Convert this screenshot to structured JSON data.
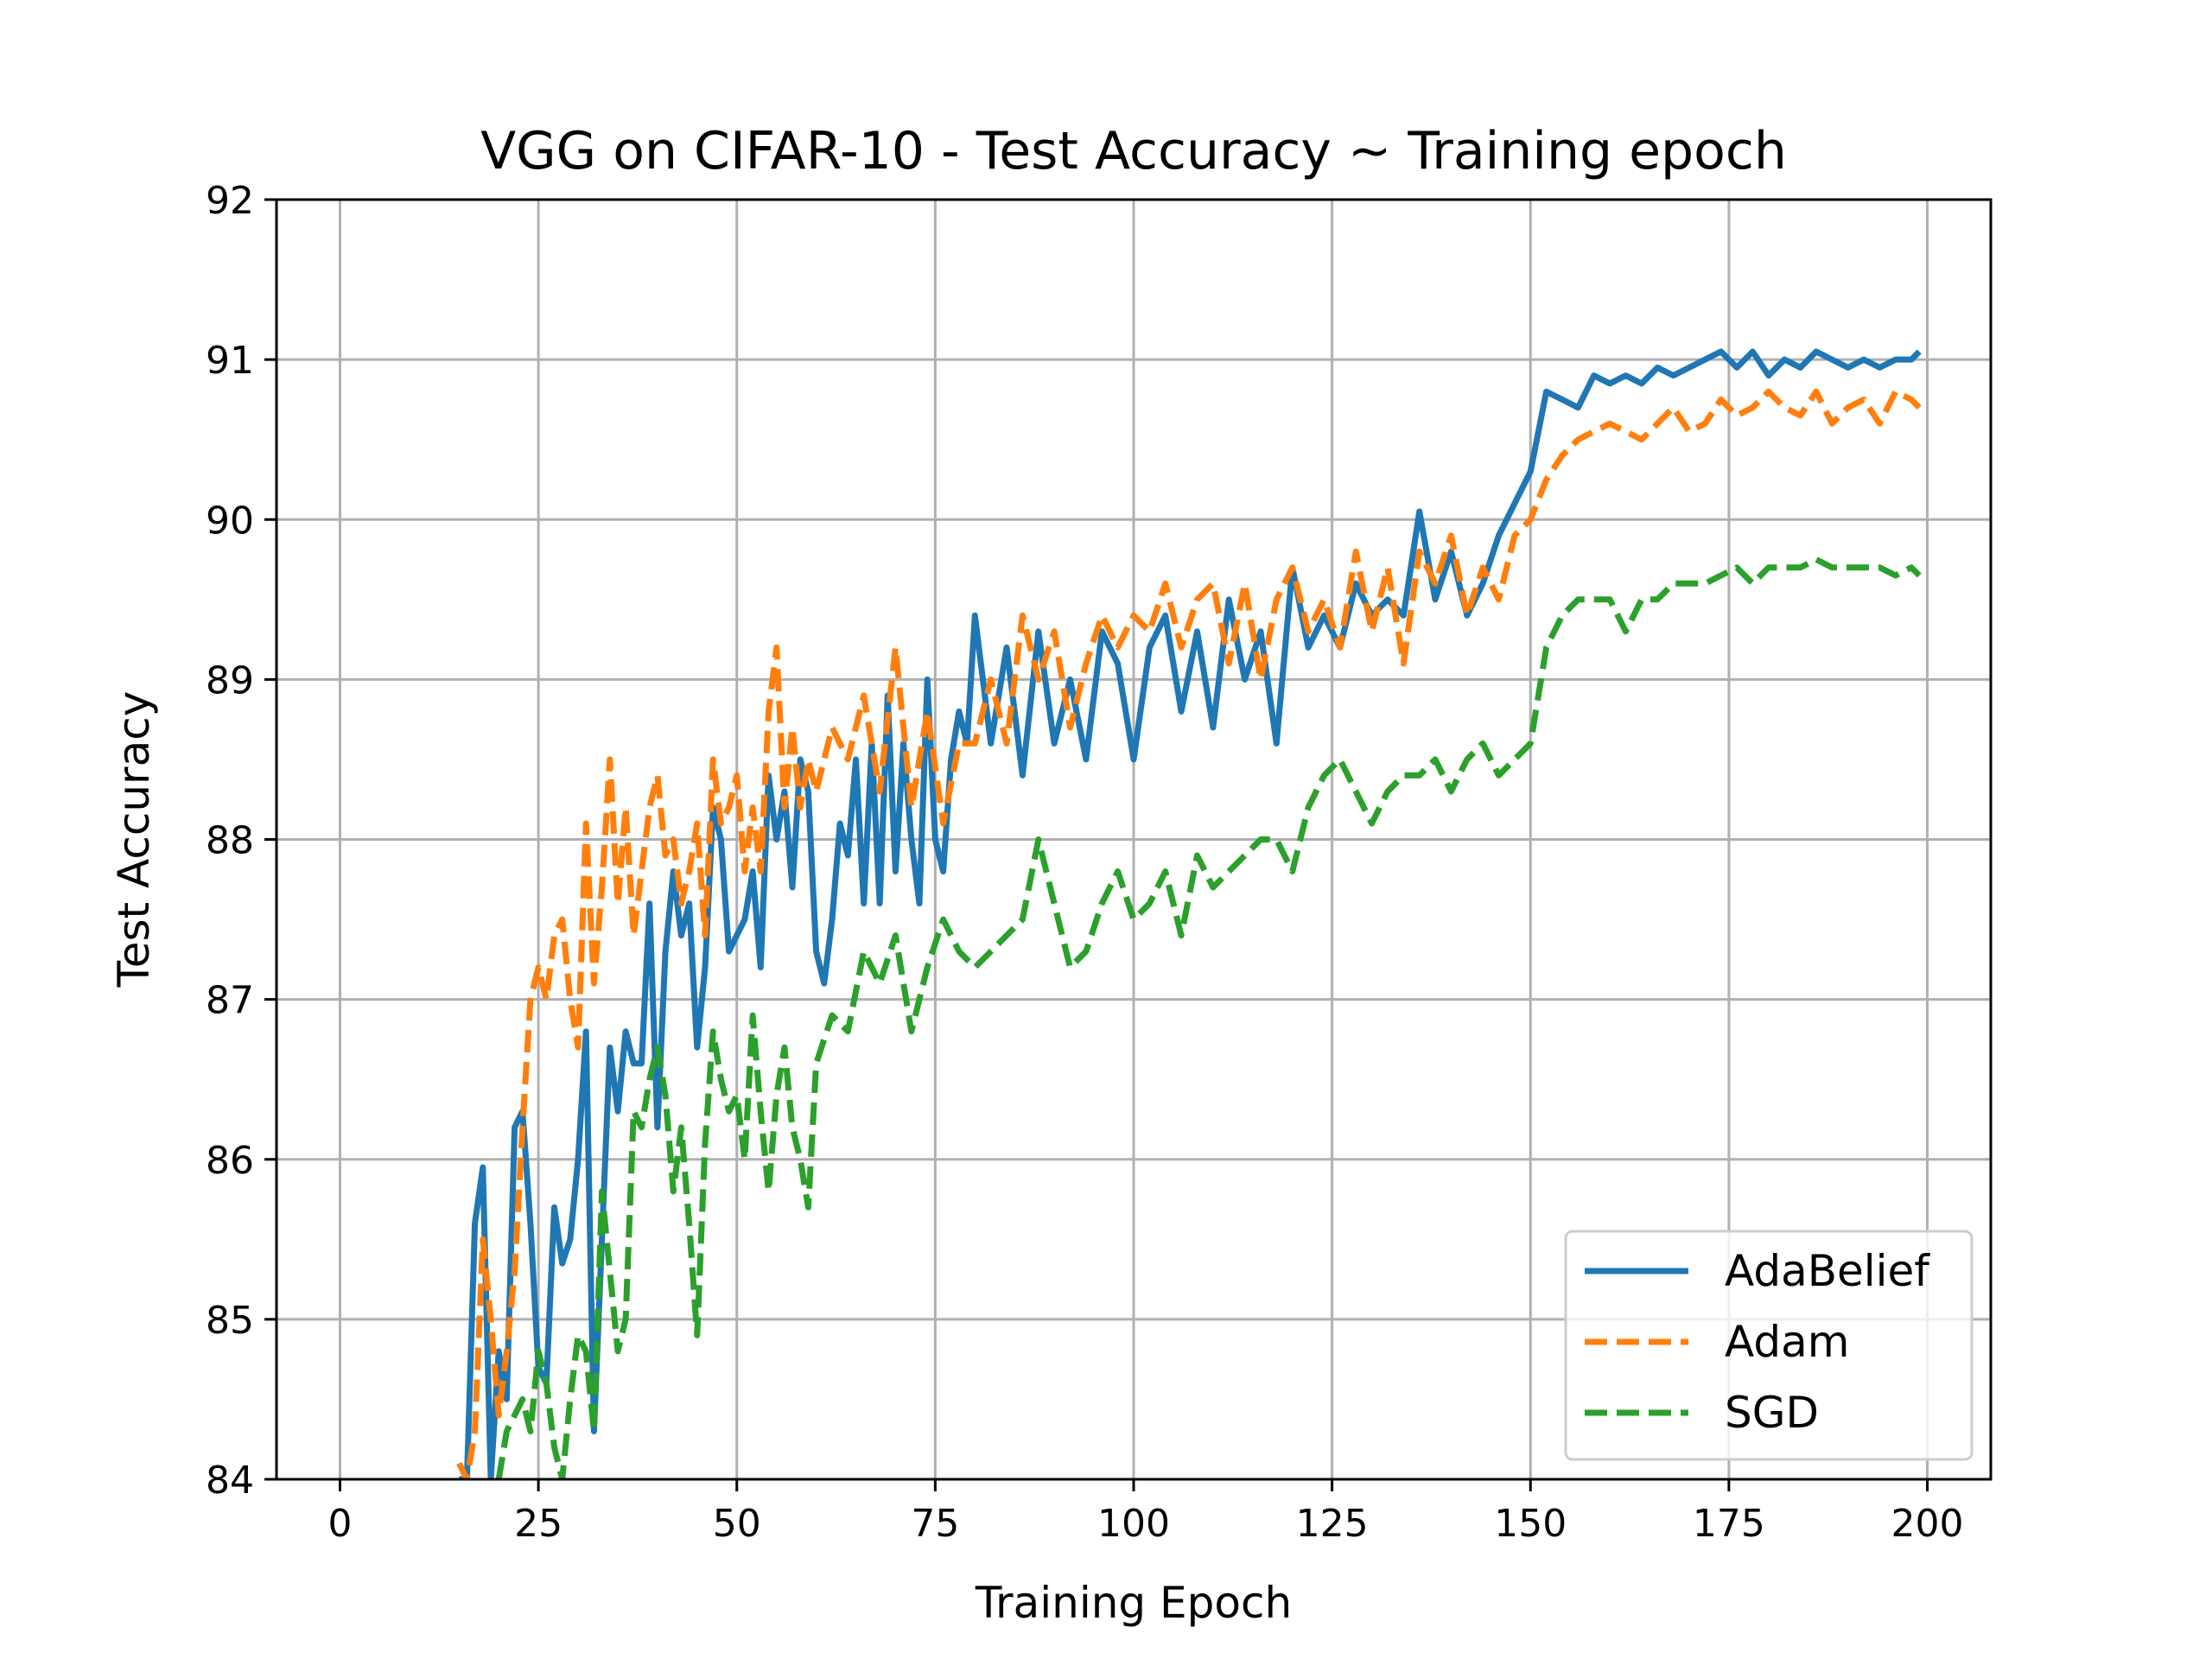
{
  "chart_data": {
    "type": "line",
    "title": "VGG on CIFAR-10 - Test Accuracy ~ Training epoch",
    "xlabel": "Training Epoch",
    "ylabel": "Test Accuracy",
    "xlim": [
      -8,
      208
    ],
    "ylim": [
      84,
      92
    ],
    "xticks": [
      0,
      25,
      50,
      75,
      100,
      125,
      150,
      175,
      200
    ],
    "yticks": [
      84,
      85,
      86,
      87,
      88,
      89,
      90,
      91,
      92
    ],
    "grid": true,
    "legend_position": "bottom-right",
    "series": [
      {
        "name": "AdaBelief",
        "color": "#1f77b4",
        "dash": "solid",
        "x": [
          15,
          16,
          17,
          18,
          19,
          20,
          21,
          22,
          23,
          24,
          25,
          26,
          27,
          28,
          29,
          30,
          31,
          32,
          33,
          34,
          35,
          36,
          37,
          38,
          39,
          40,
          41,
          42,
          43,
          44,
          45,
          46,
          47,
          48,
          49,
          50,
          51,
          52,
          53,
          54,
          55,
          56,
          57,
          58,
          59,
          60,
          61,
          62,
          63,
          64,
          65,
          66,
          67,
          68,
          69,
          70,
          71,
          72,
          73,
          74,
          75,
          76,
          77,
          78,
          79,
          80,
          82,
          84,
          86,
          88,
          90,
          92,
          94,
          96,
          98,
          100,
          102,
          104,
          106,
          108,
          110,
          112,
          114,
          116,
          118,
          120,
          122,
          124,
          126,
          128,
          130,
          132,
          134,
          136,
          138,
          140,
          142,
          144,
          146,
          148,
          150,
          152,
          154,
          156,
          158,
          160,
          162,
          164,
          166,
          168,
          170,
          172,
          174,
          176,
          178,
          180,
          182,
          184,
          186,
          188,
          190,
          192,
          194,
          196,
          198,
          199
        ],
        "values": [
          84.0,
          84.0,
          85.6,
          85.95,
          84.0,
          84.8,
          84.5,
          86.2,
          86.3,
          85.6,
          84.7,
          84.6,
          85.7,
          85.35,
          85.5,
          86.0,
          86.8,
          84.3,
          85.5,
          86.7,
          86.3,
          86.8,
          86.6,
          86.6,
          87.6,
          86.2,
          87.3,
          87.8,
          87.4,
          87.6,
          86.7,
          87.2,
          88.2,
          88.0,
          87.3,
          87.4,
          87.5,
          87.8,
          87.2,
          88.4,
          88.0,
          88.3,
          87.7,
          88.5,
          88.3,
          87.3,
          87.1,
          87.5,
          88.1,
          87.9,
          88.5,
          87.6,
          88.6,
          87.6,
          88.9,
          87.8,
          88.6,
          88.0,
          87.6,
          89.0,
          88.0,
          87.8,
          88.5,
          88.8,
          88.6,
          89.4,
          88.6,
          89.2,
          88.4,
          89.3,
          88.6,
          89.0,
          88.5,
          89.3,
          89.1,
          88.5,
          89.2,
          89.4,
          88.8,
          89.3,
          88.7,
          89.5,
          89.0,
          89.3,
          88.6,
          89.7,
          89.2,
          89.4,
          89.2,
          89.6,
          89.4,
          89.5,
          89.4,
          90.05,
          89.5,
          89.8,
          89.4,
          89.6,
          89.9,
          90.1,
          90.3,
          90.8,
          90.75,
          90.7,
          90.9,
          90.85,
          90.9,
          90.85,
          90.95,
          90.9,
          90.95,
          91.0,
          91.05,
          90.95,
          91.05,
          90.9,
          91.0,
          90.95,
          91.05,
          91.0,
          90.95,
          91.0,
          90.95,
          91.0,
          91.0,
          91.05
        ]
      },
      {
        "name": "Adam",
        "color": "#ff7f0e",
        "dash": "dashed",
        "x": [
          15,
          16,
          17,
          18,
          19,
          20,
          21,
          22,
          23,
          24,
          25,
          26,
          27,
          28,
          29,
          30,
          31,
          32,
          33,
          34,
          35,
          36,
          37,
          38,
          39,
          40,
          41,
          42,
          43,
          44,
          45,
          46,
          47,
          48,
          49,
          50,
          51,
          52,
          53,
          54,
          55,
          56,
          57,
          58,
          59,
          60,
          62,
          64,
          66,
          68,
          70,
          72,
          74,
          76,
          78,
          80,
          82,
          84,
          86,
          88,
          90,
          92,
          94,
          96,
          98,
          100,
          102,
          104,
          106,
          108,
          110,
          112,
          114,
          116,
          118,
          120,
          122,
          124,
          126,
          128,
          130,
          132,
          134,
          136,
          138,
          140,
          142,
          144,
          146,
          148,
          150,
          152,
          154,
          156,
          158,
          160,
          162,
          164,
          166,
          168,
          170,
          172,
          174,
          176,
          178,
          180,
          182,
          184,
          186,
          188,
          190,
          192,
          194,
          196,
          198,
          199
        ],
        "values": [
          84.1,
          84.0,
          84.3,
          85.5,
          85.0,
          84.4,
          84.8,
          85.3,
          86.2,
          87.0,
          87.2,
          87.0,
          87.4,
          87.5,
          87.0,
          86.7,
          88.1,
          87.1,
          87.7,
          88.5,
          87.6,
          88.2,
          87.4,
          87.8,
          88.2,
          88.4,
          87.9,
          88.0,
          87.6,
          87.8,
          88.1,
          87.4,
          88.5,
          88.1,
          88.2,
          88.4,
          87.8,
          88.2,
          87.8,
          88.8,
          89.2,
          88.2,
          88.7,
          88.2,
          88.5,
          88.3,
          88.7,
          88.5,
          88.9,
          88.3,
          89.2,
          88.2,
          88.8,
          88.1,
          88.6,
          88.6,
          89.0,
          88.6,
          89.4,
          89.0,
          89.3,
          88.7,
          89.1,
          89.4,
          89.2,
          89.4,
          89.3,
          89.6,
          89.2,
          89.5,
          89.6,
          89.1,
          89.6,
          89.0,
          89.5,
          89.7,
          89.3,
          89.5,
          89.2,
          89.8,
          89.3,
          89.7,
          89.1,
          89.8,
          89.6,
          89.9,
          89.4,
          89.7,
          89.5,
          89.9,
          90.0,
          90.25,
          90.4,
          90.5,
          90.55,
          90.6,
          90.55,
          90.5,
          90.6,
          90.7,
          90.55,
          90.6,
          90.75,
          90.65,
          90.7,
          90.8,
          90.7,
          90.65,
          90.8,
          90.6,
          90.7,
          90.75,
          90.6,
          90.8,
          90.75,
          90.7
        ]
      },
      {
        "name": "SGD",
        "color": "#2ca02c",
        "dash": "dashed",
        "x": [
          20,
          21,
          22,
          23,
          24,
          25,
          26,
          27,
          28,
          29,
          30,
          31,
          32,
          33,
          34,
          35,
          36,
          37,
          38,
          39,
          40,
          41,
          42,
          43,
          44,
          45,
          46,
          47,
          48,
          49,
          50,
          51,
          52,
          53,
          54,
          55,
          56,
          57,
          58,
          59,
          60,
          62,
          64,
          66,
          68,
          70,
          72,
          74,
          76,
          78,
          80,
          82,
          84,
          86,
          88,
          90,
          92,
          94,
          96,
          98,
          100,
          102,
          104,
          106,
          108,
          110,
          112,
          114,
          116,
          118,
          120,
          122,
          124,
          126,
          128,
          130,
          132,
          134,
          136,
          138,
          140,
          142,
          144,
          146,
          148,
          150,
          152,
          154,
          156,
          158,
          160,
          162,
          164,
          166,
          168,
          170,
          172,
          174,
          176,
          178,
          180,
          182,
          184,
          186,
          188,
          190,
          192,
          194,
          196,
          198,
          199
        ],
        "values": [
          84.0,
          84.3,
          84.4,
          84.5,
          84.3,
          84.8,
          84.6,
          84.2,
          84.0,
          84.5,
          84.9,
          84.8,
          84.3,
          85.8,
          85.3,
          84.8,
          85.0,
          86.3,
          86.2,
          86.5,
          86.7,
          86.4,
          85.8,
          86.2,
          85.6,
          84.9,
          86.1,
          86.8,
          86.5,
          86.3,
          86.4,
          86.0,
          86.9,
          86.3,
          85.8,
          86.4,
          86.7,
          86.2,
          86.0,
          85.7,
          86.6,
          86.9,
          86.8,
          87.3,
          87.1,
          87.4,
          86.8,
          87.2,
          87.5,
          87.3,
          87.2,
          87.3,
          87.4,
          87.5,
          88.0,
          87.6,
          87.2,
          87.3,
          87.6,
          87.8,
          87.5,
          87.6,
          87.8,
          87.4,
          87.9,
          87.7,
          87.8,
          87.9,
          88.0,
          88.0,
          87.8,
          88.2,
          88.4,
          88.5,
          88.3,
          88.1,
          88.3,
          88.4,
          88.4,
          88.5,
          88.3,
          88.5,
          88.6,
          88.4,
          88.5,
          88.6,
          89.2,
          89.4,
          89.5,
          89.5,
          89.5,
          89.3,
          89.5,
          89.5,
          89.6,
          89.6,
          89.6,
          89.65,
          89.7,
          89.6,
          89.7,
          89.7,
          89.7,
          89.75,
          89.7,
          89.7,
          89.7,
          89.7,
          89.65,
          89.7,
          89.65
        ]
      }
    ]
  }
}
